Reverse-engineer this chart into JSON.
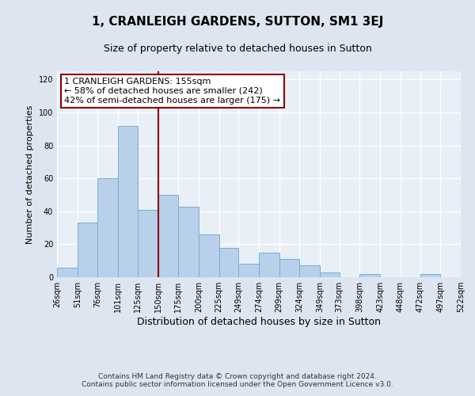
{
  "title": "1, CRANLEIGH GARDENS, SUTTON, SM1 3EJ",
  "subtitle": "Size of property relative to detached houses in Sutton",
  "xlabel": "Distribution of detached houses by size in Sutton",
  "ylabel": "Number of detached properties",
  "bins": [
    26,
    51,
    76,
    101,
    125,
    150,
    175,
    200,
    225,
    249,
    274,
    299,
    324,
    349,
    373,
    398,
    423,
    448,
    472,
    497,
    522
  ],
  "bin_labels": [
    "26sqm",
    "51sqm",
    "76sqm",
    "101sqm",
    "125sqm",
    "150sqm",
    "175sqm",
    "200sqm",
    "225sqm",
    "249sqm",
    "274sqm",
    "299sqm",
    "324sqm",
    "349sqm",
    "373sqm",
    "398sqm",
    "423sqm",
    "448sqm",
    "472sqm",
    "497sqm",
    "522sqm"
  ],
  "values": [
    6,
    33,
    60,
    92,
    41,
    50,
    43,
    26,
    18,
    8,
    15,
    11,
    7,
    3,
    0,
    2,
    0,
    0,
    2,
    0
  ],
  "bar_color": "#b8d0ea",
  "bar_edge_color": "#7aadd4",
  "vline_x": 150,
  "vline_color": "#8b0000",
  "annotation_text": "1 CRANLEIGH GARDENS: 155sqm\n← 58% of detached houses are smaller (242)\n42% of semi-detached houses are larger (175) →",
  "annotation_box_color": "white",
  "annotation_box_edge_color": "#8b0000",
  "annotation_fontsize": 8,
  "ylim": [
    0,
    125
  ],
  "yticks": [
    0,
    20,
    40,
    60,
    80,
    100,
    120
  ],
  "background_color": "#dde6f0",
  "plot_background_color": "#e8eff7",
  "grid_color": "white",
  "footer_line1": "Contains HM Land Registry data © Crown copyright and database right 2024.",
  "footer_line2": "Contains public sector information licensed under the Open Government Licence v3.0.",
  "title_fontsize": 11,
  "subtitle_fontsize": 9,
  "xlabel_fontsize": 9,
  "ylabel_fontsize": 8,
  "footer_fontsize": 6.5,
  "tick_fontsize": 7
}
